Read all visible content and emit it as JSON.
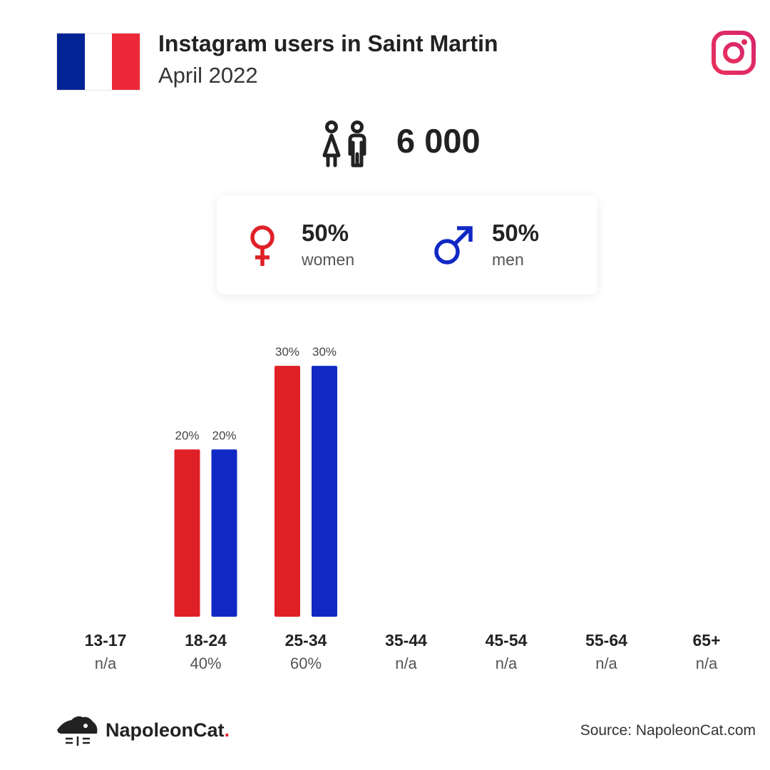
{
  "header": {
    "title": "Instagram users in Saint Martin",
    "subtitle": "April 2022",
    "flag_colors": [
      "#002395",
      "#ffffff",
      "#ed2939"
    ],
    "flag_icon": "france-flag-icon",
    "platform_icon": "instagram-icon"
  },
  "summary": {
    "users_icon": "users-icon",
    "total_users": "6 000"
  },
  "gender": {
    "women": {
      "icon": "female-icon",
      "pct": "50%",
      "label": "women",
      "color": "#e02027"
    },
    "men": {
      "icon": "male-icon",
      "pct": "50%",
      "label": "men",
      "color": "#1029c4"
    }
  },
  "chart_data": {
    "type": "bar",
    "categories": [
      "13-17",
      "18-24",
      "25-34",
      "35-44",
      "45-54",
      "55-64",
      "65+"
    ],
    "category_totals": [
      "n/a",
      "40%",
      "60%",
      "n/a",
      "n/a",
      "n/a",
      "n/a"
    ],
    "series": [
      {
        "name": "women",
        "color": "#e02027",
        "values": [
          null,
          20,
          30,
          null,
          null,
          null,
          null
        ],
        "labels": [
          "",
          "20%",
          "30%",
          "",
          "",
          "",
          ""
        ]
      },
      {
        "name": "men",
        "color": "#1029c4",
        "values": [
          null,
          20,
          30,
          null,
          null,
          null,
          null
        ],
        "labels": [
          "",
          "20%",
          "30%",
          "",
          "",
          "",
          ""
        ]
      }
    ],
    "unit": "%",
    "grid": false
  },
  "footer": {
    "brand_icon": "napoleoncat-logo-icon",
    "brand_name": "NapoleonCat",
    "brand_dot": ".",
    "source": "Source: NapoleonCat.com"
  }
}
